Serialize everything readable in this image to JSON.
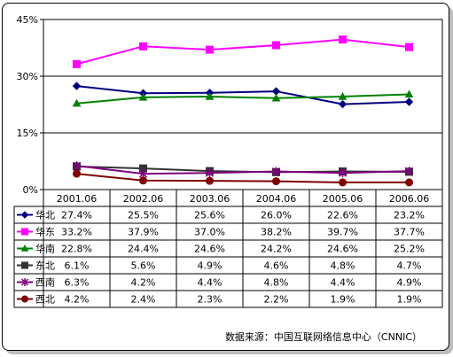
{
  "chart_data": {
    "type": "line",
    "categories": [
      "2001.06",
      "2002.06",
      "2003.06",
      "2004.06",
      "2005.06",
      "2006.06"
    ],
    "y_ticks": [
      "0%",
      "15%",
      "30%",
      "45%"
    ],
    "ylim": [
      0,
      45
    ],
    "grid": true,
    "legend": "table-below",
    "series": [
      {
        "name": "华北",
        "color": "#000080",
        "marker": "diamond",
        "values": [
          27.4,
          25.5,
          25.6,
          26.0,
          22.6,
          23.2
        ],
        "labels": [
          "27.4%",
          "25.5%",
          "25.6%",
          "26.0%",
          "22.6%",
          "23.2%"
        ]
      },
      {
        "name": "华东",
        "color": "#ff00ff",
        "marker": "square",
        "values": [
          33.2,
          37.9,
          37.0,
          38.2,
          39.7,
          37.7
        ],
        "labels": [
          "33.2%",
          "37.9%",
          "37.0%",
          "38.2%",
          "39.7%",
          "37.7%"
        ]
      },
      {
        "name": "华南",
        "color": "#008000",
        "marker": "triangle",
        "values": [
          22.8,
          24.4,
          24.6,
          24.2,
          24.6,
          25.2
        ],
        "labels": [
          "22.8%",
          "24.4%",
          "24.6%",
          "24.2%",
          "24.6%",
          "25.2%"
        ]
      },
      {
        "name": "东北",
        "color": "#333333",
        "marker": "square",
        "values": [
          6.1,
          5.6,
          4.9,
          4.6,
          4.8,
          4.7
        ],
        "labels": [
          "6.1%",
          "5.6%",
          "4.9%",
          "4.6%",
          "4.8%",
          "4.7%"
        ]
      },
      {
        "name": "西南",
        "color": "#800080",
        "marker": "star",
        "values": [
          6.3,
          4.2,
          4.4,
          4.8,
          4.4,
          4.9
        ],
        "labels": [
          "6.3%",
          "4.2%",
          "4.4%",
          "4.8%",
          "4.4%",
          "4.9%"
        ]
      },
      {
        "name": "西北",
        "color": "#800000",
        "marker": "circle",
        "values": [
          4.2,
          2.4,
          2.3,
          2.2,
          1.9,
          1.9
        ],
        "labels": [
          "4.2%",
          "2.4%",
          "2.3%",
          "2.2%",
          "1.9%",
          "1.9%"
        ]
      }
    ]
  },
  "source_note": "数据来源：中国互联网络信息中心（CNNIC）"
}
